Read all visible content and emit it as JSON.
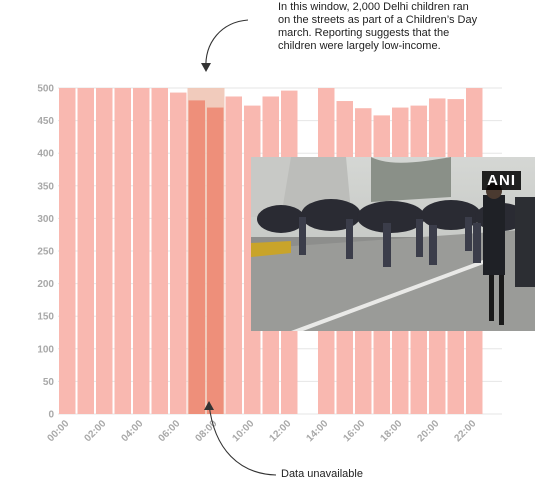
{
  "chart_data": {
    "type": "bar",
    "title": "",
    "xlabel": "",
    "ylabel": "",
    "ylim": [
      0,
      500
    ],
    "yticks": [
      0,
      50,
      100,
      150,
      200,
      250,
      300,
      350,
      400,
      450,
      500
    ],
    "x_tick_labels": [
      "00:00",
      "02:00",
      "04:00",
      "06:00",
      "08:00",
      "10:00",
      "12:00",
      "14:00",
      "16:00",
      "18:00",
      "20:00",
      "22:00"
    ],
    "hours": [
      0,
      1,
      2,
      3,
      4,
      5,
      6,
      7,
      8,
      9,
      10,
      11,
      12,
      13,
      14,
      15,
      16,
      17,
      18,
      19,
      20,
      21,
      22,
      23
    ],
    "values": [
      500,
      500,
      500,
      500,
      500,
      500,
      493,
      481,
      470,
      487,
      473,
      487,
      496,
      null,
      500,
      480,
      469,
      458,
      470,
      473,
      484,
      483,
      500,
      null
    ],
    "highlight_window": [
      7,
      8
    ],
    "colors": {
      "bar": "#f9b8b0",
      "highlight_bar": "#ee8f7a",
      "window": "#efc2b0",
      "grid": "#e6e6e6"
    }
  },
  "annotations": {
    "march": "In this window, 2,000 Delhi children ran on the streets as part of a Children’s Day march. Reporting suggests that the children were largely low-income.",
    "missing": "Data unavailable"
  },
  "photo": {
    "credit": "ANI"
  }
}
